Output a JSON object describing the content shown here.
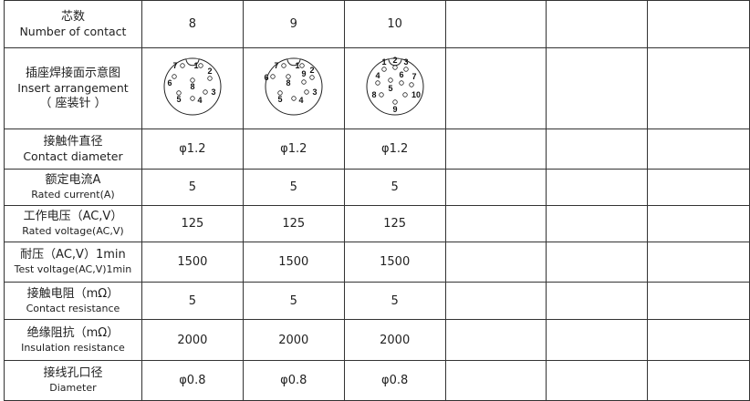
{
  "rows": [
    {
      "cn": "芯数",
      "en": "Number of contact",
      "values": [
        "8",
        "9",
        "10"
      ]
    },
    {
      "cn": "插座焊接面示意图",
      "en": "Insert arrangement",
      "cn2": "（ 座装针 ）",
      "diagrams": [
        {
          "pins": [
            "1",
            "2",
            "3",
            "4",
            "5",
            "6",
            "7",
            "8"
          ]
        },
        {
          "pins": [
            "1",
            "2",
            "3",
            "4",
            "5",
            "6",
            "7",
            "8",
            "9"
          ]
        },
        {
          "pins": [
            "1",
            "2",
            "3",
            "4",
            "5",
            "6",
            "7",
            "8",
            "9",
            "10"
          ]
        }
      ]
    },
    {
      "cn": "接触件直径",
      "en": "Contact diameter",
      "values": [
        "φ1.2",
        "φ1.2",
        "φ1.2"
      ]
    },
    {
      "cn": "额定电流A",
      "en": "Rated current(A)",
      "values": [
        "5",
        "5",
        "5"
      ]
    },
    {
      "cn": "工作电压（AC,V）",
      "en": "Rated voltage(AC,V)",
      "values": [
        "125",
        "125",
        "125"
      ]
    },
    {
      "cn": "耐压（AC,V）1min",
      "en": "Test voltage(AC,V)1min",
      "values": [
        "1500",
        "1500",
        "1500"
      ]
    },
    {
      "cn": "接触电阻（mΩ）",
      "en": "Contact resistance",
      "values": [
        "5",
        "5",
        "5"
      ]
    },
    {
      "cn": "绝缘阻抗（mΩ）",
      "en": "Insulation resistance",
      "values": [
        "2000",
        "2000",
        "2000"
      ]
    },
    {
      "cn": "接线孔口径",
      "en": "Diameter",
      "values": [
        "φ0.8",
        "φ0.8",
        "φ0.8"
      ]
    }
  ]
}
